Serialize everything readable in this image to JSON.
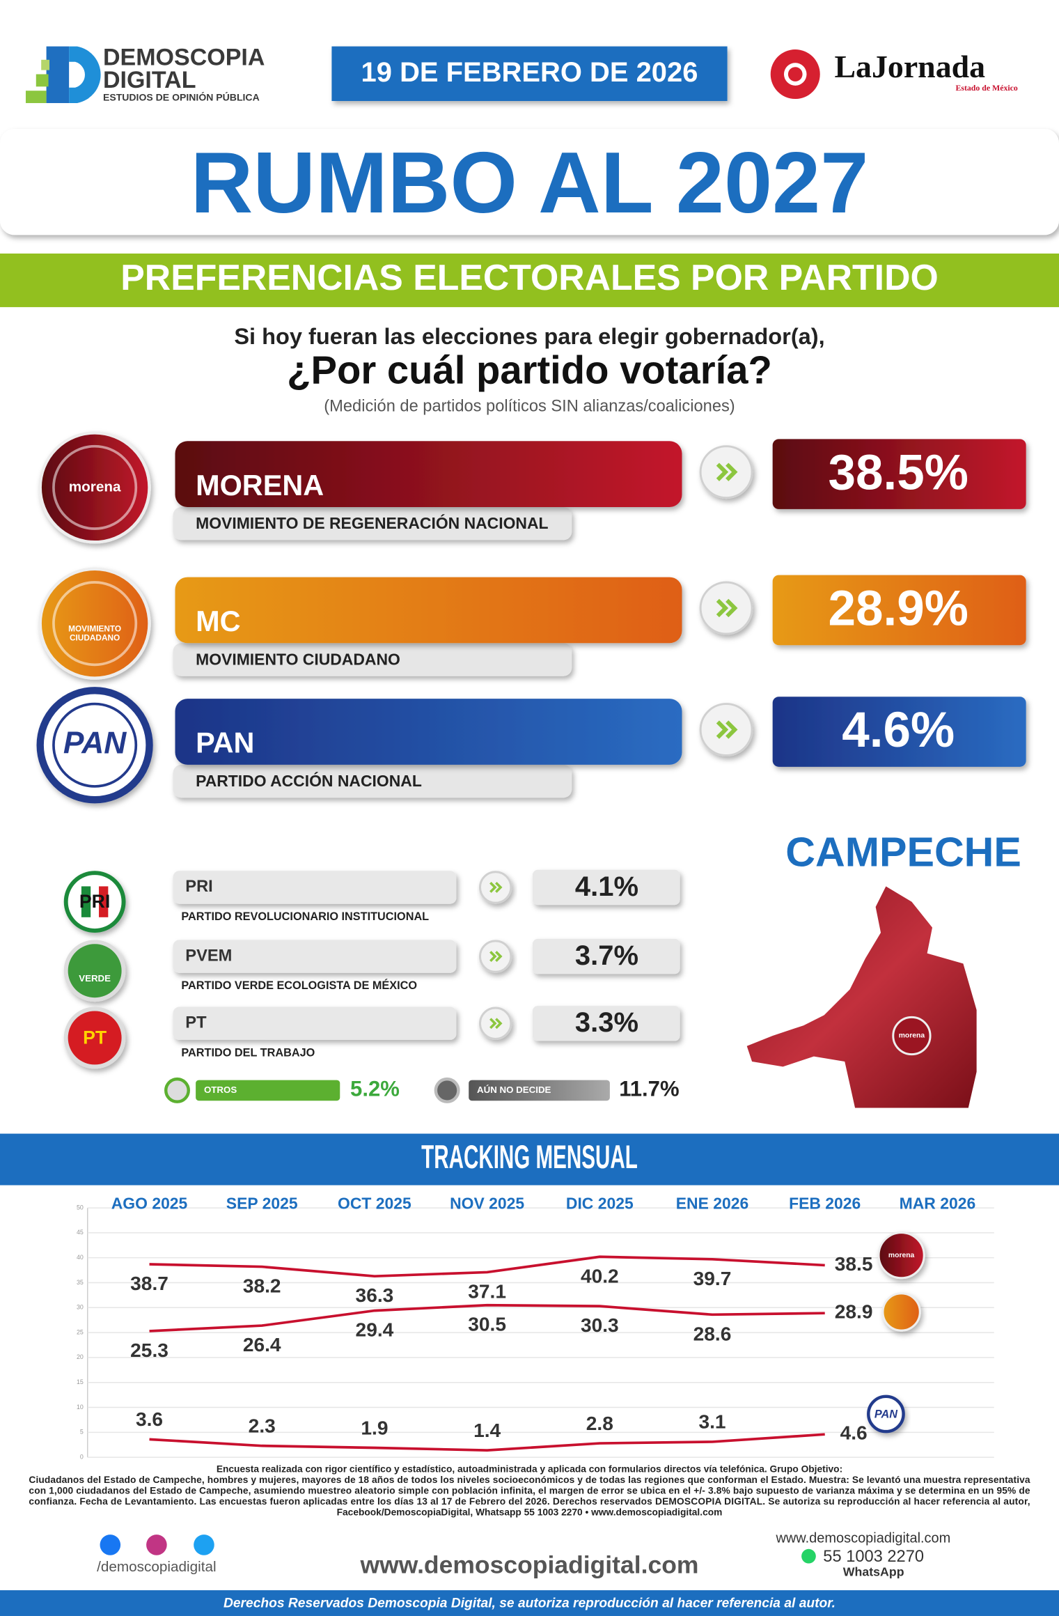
{
  "header": {
    "brand": [
      "DEMOSCOPIA",
      "DIGITAL"
    ],
    "tagline": "ESTUDIOS DE OPINIÓN PÚBLICA",
    "date": "19 DE FEBRERO DE 2026",
    "partner": "LaJornada",
    "partner_region": "Estado de México"
  },
  "title": "RUMBO AL 2027",
  "subtitle": "PREFERENCIAS ELECTORALES POR PARTIDO",
  "question": [
    "Si hoy fueran las elecciones para elegir gobernador(a),",
    "¿Por cuál partido votaría?"
  ],
  "note": "(Medición de partidos políticos SIN alianzas/coaliciones)",
  "parties": {
    "main": [
      {
        "abbr": "MORENA",
        "name": "MOVIMIENTO DE REGENERACIÓN NACIONAL",
        "pct": "38.5%",
        "logo": [
          "morena"
        ]
      },
      {
        "abbr": "MC",
        "name": "MOVIMIENTO CIUDADANO",
        "pct": "28.9%",
        "logo": [
          "MOVIMIENTO",
          "CIUDADANO"
        ]
      },
      {
        "abbr": "PAN",
        "name": "PARTIDO ACCIÓN NACIONAL",
        "pct": "4.6%",
        "logo": [
          "PAN"
        ]
      }
    ],
    "minor": [
      {
        "abbr": "PRI",
        "name": "PARTIDO REVOLUCIONARIO INSTITUCIONAL",
        "pct": "4.1%",
        "logo": [
          "PRI"
        ]
      },
      {
        "abbr": "PVEM",
        "name": "PARTIDO VERDE ECOLOGISTA DE MÉXICO",
        "pct": "3.7%",
        "logo": [
          "VERDE"
        ]
      },
      {
        "abbr": "PT",
        "name": "PARTIDO DEL TRABAJO",
        "pct": "3.3%",
        "logo": [
          "PT"
        ]
      }
    ],
    "others": {
      "label": "OTROS",
      "pct": "5.2%"
    },
    "undecided": {
      "label": "AÚN NO DECIDE",
      "pct": "11.7%"
    }
  },
  "state": {
    "name": "CAMPECHE",
    "winner_logo": "morena"
  },
  "chart_data": {
    "type": "line",
    "title": "TRACKING MENSUAL",
    "categories": [
      "AGO 2025",
      "SEP 2025",
      "OCT 2025",
      "NOV 2025",
      "DIC 2025",
      "ENE 2026",
      "FEB 2026",
      "MAR 2026"
    ],
    "series": [
      {
        "name": "MORENA",
        "color": "#c8102e",
        "values": [
          38.7,
          38.2,
          36.3,
          37.1,
          40.2,
          39.7,
          38.5,
          null
        ]
      },
      {
        "name": "MC",
        "color": "#c8102e",
        "values": [
          25.3,
          26.4,
          29.4,
          30.5,
          30.3,
          28.6,
          28.9,
          null
        ]
      },
      {
        "name": "PAN",
        "color": "#c8102e",
        "values": [
          3.6,
          2.3,
          1.9,
          1.4,
          2.8,
          3.1,
          4.6,
          null
        ]
      }
    ],
    "ylim": [
      0,
      50
    ],
    "yticks": [
      0,
      5,
      10,
      15,
      20,
      25,
      30,
      35,
      40,
      45,
      50
    ],
    "grid": true
  },
  "footer": {
    "methodology": [
      "Encuesta realizada con rigor científico y estadístico, autoadministrada y aplicada con formularios directos vía telefónica. Grupo Objetivo:",
      "Ciudadanos del Estado de Campeche, hombres y mujeres, mayores de 18 años de todos los niveles socioeconómicos y de todas las regiones que conforman el Estado. Muestra: Se levantó una muestra representativa",
      "con 1,000 ciudadanos del Estado de Campeche, asumiendo muestreo aleatorio simple con población infinita, el margen de error se ubica en el +/- 3.8% bajo supuesto de varianza máxima y se determina en un 95% de",
      "confianza. Fecha de Levantamiento. Las encuestas fueron aplicadas entre los días 13 al 17 de Febrero del 2026. Derechos reservados DEMOSCOPIA DIGITAL. Se autoriza su reproducción al hacer referencia al autor,",
      "Facebook/DemoscopiaDigital, Whatsapp 55 1003 2270 • www.demoscopiadigital.com"
    ],
    "social_handle": "/demoscopiadigital",
    "website": "www.demoscopiadigital.com",
    "contact_web": "www.demoscopiadigital.com",
    "phone": "55 1003 2270",
    "phone_app": "WhatsApp",
    "rights": "Derechos Reservados Demoscopia Digital, se autoriza reproducción al hacer referencia al autor."
  }
}
